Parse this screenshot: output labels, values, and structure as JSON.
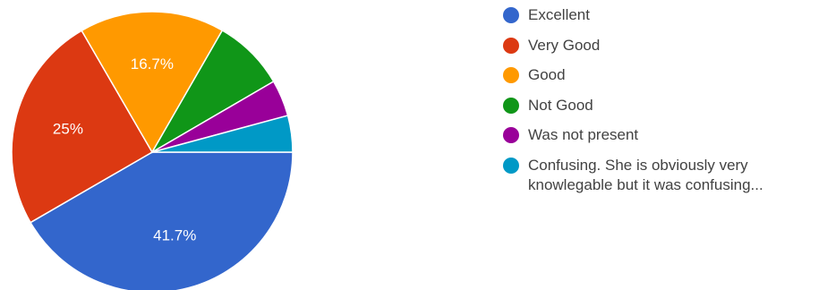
{
  "chart_data": {
    "type": "pie",
    "slices": [
      {
        "label": "Excellent",
        "value": 41.7,
        "value_label": "41.7%",
        "color": "#3366cc"
      },
      {
        "label": "Very Good",
        "value": 25,
        "value_label": "25%",
        "color": "#dc3912"
      },
      {
        "label": "Good",
        "value": 16.7,
        "value_label": "16.7%",
        "color": "#ff9900"
      },
      {
        "label": "Not Good",
        "value": 8.3,
        "value_label": "",
        "color": "#109618"
      },
      {
        "label": "Was not present",
        "value": 4.2,
        "value_label": "",
        "color": "#990099"
      },
      {
        "label": "Confusing. She is obviously very knowlegable but it was confusing...",
        "value": 4.2,
        "value_label": "",
        "color": "#0099c6"
      }
    ],
    "legend_position": "right"
  }
}
